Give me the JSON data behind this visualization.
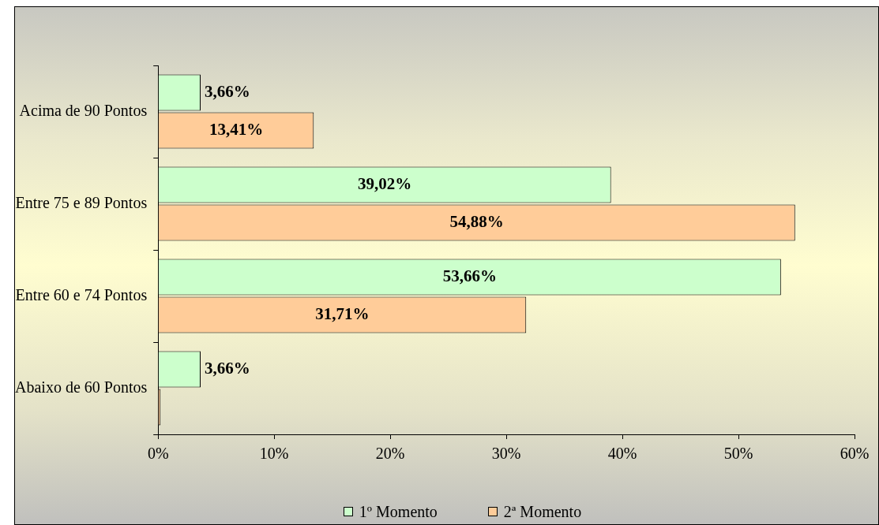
{
  "chart_data": {
    "type": "bar",
    "orientation": "horizontal",
    "categories": [
      "Acima de 90 Pontos",
      "Entre 75 e 89 Pontos",
      "Entre 60 e 74 Pontos",
      "Abaixo de 60 Pontos"
    ],
    "series": [
      {
        "name": "1º Momento",
        "color": "#ccffcc",
        "values": [
          3.66,
          39.02,
          53.66,
          3.66
        ],
        "value_labels": [
          "3,66%",
          "39,02%",
          "53,66%",
          "3,66%"
        ]
      },
      {
        "name": "2ª Momento",
        "color": "#ffcc99",
        "values": [
          13.41,
          54.88,
          31.71,
          0
        ],
        "value_labels": [
          "13,41%",
          "54,88%",
          "31,71%",
          null
        ]
      }
    ],
    "xlim": [
      0,
      60
    ],
    "xticks": [
      {
        "value": 0,
        "label": "0%"
      },
      {
        "value": 10,
        "label": "10%"
      },
      {
        "value": 20,
        "label": "20%"
      },
      {
        "value": 30,
        "label": "30%"
      },
      {
        "value": 40,
        "label": "40%"
      },
      {
        "value": 50,
        "label": "50%"
      },
      {
        "value": 60,
        "label": "60%"
      }
    ],
    "grid": false,
    "legend": "bottom"
  }
}
